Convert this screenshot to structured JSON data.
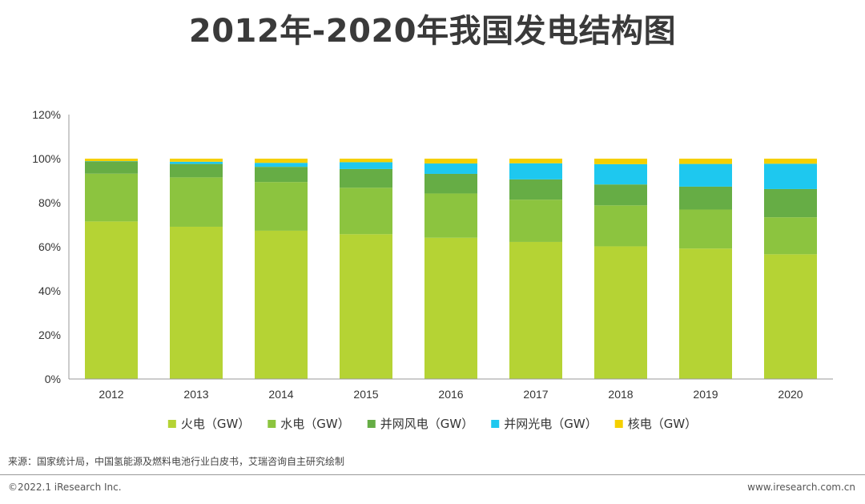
{
  "header": {
    "title": "2012年-2020年我国发电结构图"
  },
  "chart_data": {
    "type": "bar",
    "stacked": true,
    "normalized": true,
    "title": "2012年-2020年我国发电结构图",
    "xlabel": "",
    "ylabel": "",
    "ylim": [
      0,
      120
    ],
    "yticks": [
      "0%",
      "20%",
      "40%",
      "60%",
      "80%",
      "100%",
      "120%"
    ],
    "grid": false,
    "legend_position": "bottom",
    "categories": [
      "2012",
      "2013",
      "2014",
      "2015",
      "2016",
      "2017",
      "2018",
      "2019",
      "2020"
    ],
    "series": [
      {
        "name": "火电（GW）",
        "color": "#b5d334",
        "values": [
          71.5,
          69.1,
          67.3,
          65.7,
          64.1,
          62.2,
          60.2,
          59.2,
          56.6
        ]
      },
      {
        "name": "水电（GW）",
        "color": "#8cc43f",
        "values": [
          21.7,
          22.4,
          22.1,
          21.1,
          20.1,
          19.2,
          18.6,
          17.7,
          16.8
        ]
      },
      {
        "name": "并网风电（GW）",
        "color": "#66ad45",
        "values": [
          5.6,
          6.1,
          6.9,
          8.5,
          8.9,
          9.2,
          9.5,
          10.4,
          12.8
        ]
      },
      {
        "name": "并网光电（GW）",
        "color": "#1ec8ef",
        "values": [
          0.1,
          1.0,
          1.8,
          3.1,
          4.7,
          7.3,
          9.2,
          10.3,
          11.5
        ]
      },
      {
        "name": "核电（GW）",
        "color": "#f5d000",
        "values": [
          1.1,
          1.4,
          1.9,
          1.6,
          2.2,
          2.1,
          2.5,
          2.4,
          2.3
        ]
      }
    ]
  },
  "footer": {
    "source": "来源：国家统计局，中国氢能源及燃料电池行业白皮书，艾瑞咨询自主研究绘制",
    "copyright": "©2022.1 iResearch Inc.",
    "website": "www.iresearch.com.cn"
  }
}
